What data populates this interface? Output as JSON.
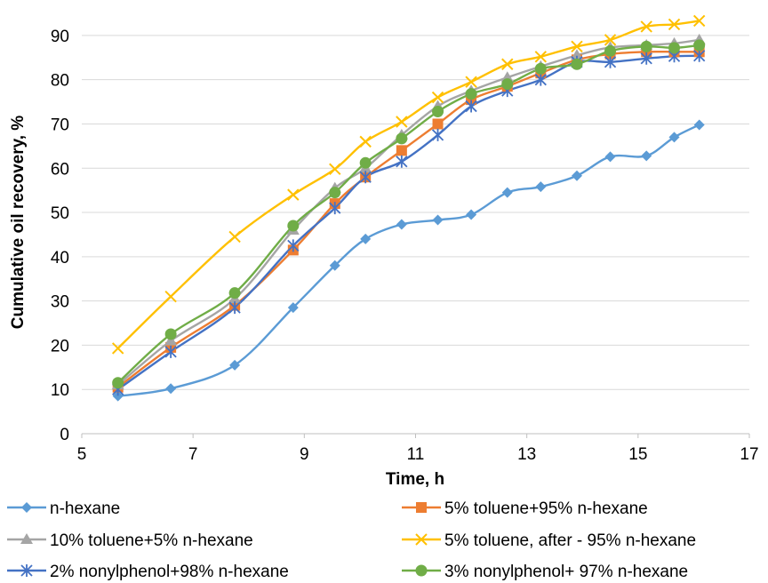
{
  "chart_data": {
    "type": "line",
    "title": "",
    "xlabel": "Time, h",
    "ylabel": "Cumulative oil recovery, %",
    "xlim": [
      5,
      17
    ],
    "ylim": [
      0,
      95
    ],
    "xticks": [
      5,
      7,
      9,
      11,
      13,
      15,
      17
    ],
    "yticks": [
      0,
      10,
      20,
      30,
      40,
      50,
      60,
      70,
      80,
      90
    ],
    "grid": "horizontal",
    "legend_position": "bottom",
    "series": [
      {
        "name": "n-hexane",
        "color": "#5B9BD5",
        "marker": "diamond",
        "x": [
          5.65,
          6.6,
          7.75,
          8.8,
          9.55,
          10.1,
          10.75,
          11.4,
          12.0,
          12.65,
          13.25,
          13.9,
          14.5,
          15.15,
          15.65,
          16.1
        ],
        "y": [
          8.5,
          10.2,
          15.5,
          28.5,
          38,
          44,
          47.3,
          48.3,
          49.5,
          54.5,
          55.8,
          58.3,
          62.6,
          62.8,
          67,
          69.8
        ]
      },
      {
        "name": "5% toluene+95% n-hexane",
        "color": "#ED7D31",
        "marker": "square",
        "x": [
          5.65,
          6.6,
          7.75,
          8.8,
          9.55,
          10.1,
          10.75,
          11.4,
          12.0,
          12.65,
          13.25,
          13.9,
          14.5,
          15.15,
          15.65,
          16.1
        ],
        "y": [
          10.5,
          19.5,
          29,
          41.5,
          52,
          58,
          64,
          70,
          75.5,
          78.5,
          81.5,
          84.5,
          85.8,
          86.3,
          86.3,
          86.3
        ]
      },
      {
        "name": "10% toluene+5% n-hexane",
        "color": "#A5A5A5",
        "marker": "triangle",
        "x": [
          5.65,
          6.6,
          7.75,
          8.8,
          9.55,
          10.1,
          10.75,
          11.4,
          12.0,
          12.65,
          13.25,
          13.9,
          14.5,
          15.15,
          15.65,
          16.1
        ],
        "y": [
          11,
          21,
          30.5,
          46,
          55.5,
          60,
          67.5,
          74,
          77.5,
          80.5,
          83,
          85.5,
          87.3,
          87.8,
          88.2,
          89
        ]
      },
      {
        "name": "5% toluene, after - 95% n-hexane",
        "color": "#FFC000",
        "marker": "x",
        "x": [
          5.65,
          6.6,
          7.75,
          8.8,
          9.55,
          10.1,
          10.75,
          11.4,
          12.0,
          12.65,
          13.25,
          13.9,
          14.5,
          15.15,
          15.65,
          16.1
        ],
        "y": [
          19.3,
          31,
          44.5,
          54,
          59.8,
          66,
          70.5,
          76,
          79.5,
          83.5,
          85.2,
          87.5,
          89,
          92,
          92.5,
          93.3
        ]
      },
      {
        "name": "2% nonylphenol+98% n-hexane",
        "color": "#4472C4",
        "marker": "star",
        "x": [
          5.65,
          6.6,
          7.75,
          8.8,
          9.55,
          10.1,
          10.75,
          11.4,
          12.0,
          12.65,
          13.25,
          13.9,
          14.5,
          15.15,
          15.65,
          16.1
        ],
        "y": [
          10,
          18.5,
          28.5,
          42.5,
          51,
          58,
          61.5,
          67.5,
          74,
          77.5,
          80,
          84,
          84,
          84.8,
          85.3,
          85.4
        ]
      },
      {
        "name": "3% nonylphenol+ 97% n-hexane",
        "color": "#70AD47",
        "marker": "circle",
        "x": [
          5.65,
          6.6,
          7.75,
          8.8,
          9.55,
          10.1,
          10.75,
          11.4,
          12.0,
          12.65,
          13.25,
          13.9,
          14.5,
          15.15,
          15.65,
          16.1
        ],
        "y": [
          11.5,
          22.5,
          31.8,
          47,
          54.5,
          61.2,
          66.7,
          72.8,
          76.8,
          79,
          82.5,
          83.5,
          86.5,
          87.5,
          87.2,
          87.8
        ]
      }
    ]
  }
}
